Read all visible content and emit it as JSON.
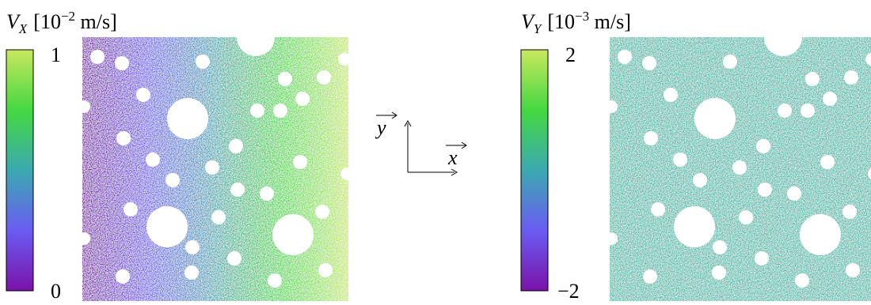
{
  "panels": [
    {
      "symbol": "V",
      "subscript": "X",
      "unit_open": "[10",
      "exponent": "−2",
      "unit_close": " m/s]",
      "colorbar_top": "1",
      "colorbar_bottom": "0"
    },
    {
      "symbol": "V",
      "subscript": "Y",
      "unit_open": "[10",
      "exponent": "−3",
      "unit_close": " m/s]",
      "colorbar_top": "2",
      "colorbar_bottom": "−2"
    }
  ],
  "axes": {
    "y_label": "y",
    "x_label": "x"
  }
}
